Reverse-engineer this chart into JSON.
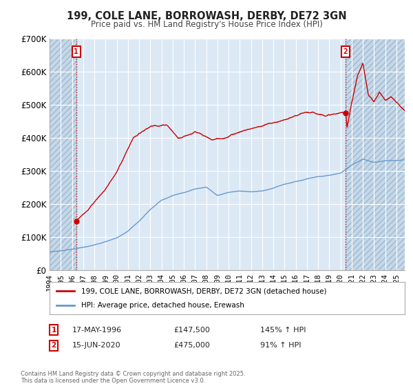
{
  "title": "199, COLE LANE, BORROWASH, DERBY, DE72 3GN",
  "subtitle": "Price paid vs. HM Land Registry's House Price Index (HPI)",
  "background_color": "#ffffff",
  "plot_bg_color": "#dce9f5",
  "hatch_bg_color": "#c8d8e8",
  "grid_color": "#ffffff",
  "red_color": "#cc0000",
  "blue_color": "#6699cc",
  "ann1_date": 1996.38,
  "ann1_price": 147500,
  "ann1_text": "17-MAY-1996",
  "ann1_amount": "£147,500",
  "ann1_pct": "145% ↑ HPI",
  "ann2_date": 2020.46,
  "ann2_price": 475000,
  "ann2_text": "15-JUN-2020",
  "ann2_amount": "£475,000",
  "ann2_pct": "91% ↑ HPI",
  "xmin": 1994.0,
  "xmax": 2025.75,
  "ymin": 0,
  "ymax": 700000,
  "yticks": [
    0,
    100000,
    200000,
    300000,
    400000,
    500000,
    600000,
    700000
  ],
  "ytick_labels": [
    "£0",
    "£100K",
    "£200K",
    "£300K",
    "£400K",
    "£500K",
    "£600K",
    "£700K"
  ],
  "legend_line1": "199, COLE LANE, BORROWASH, DERBY, DE72 3GN (detached house)",
  "legend_line2": "HPI: Average price, detached house, Erewash",
  "footer": "Contains HM Land Registry data © Crown copyright and database right 2025.\nThis data is licensed under the Open Government Licence v3.0."
}
